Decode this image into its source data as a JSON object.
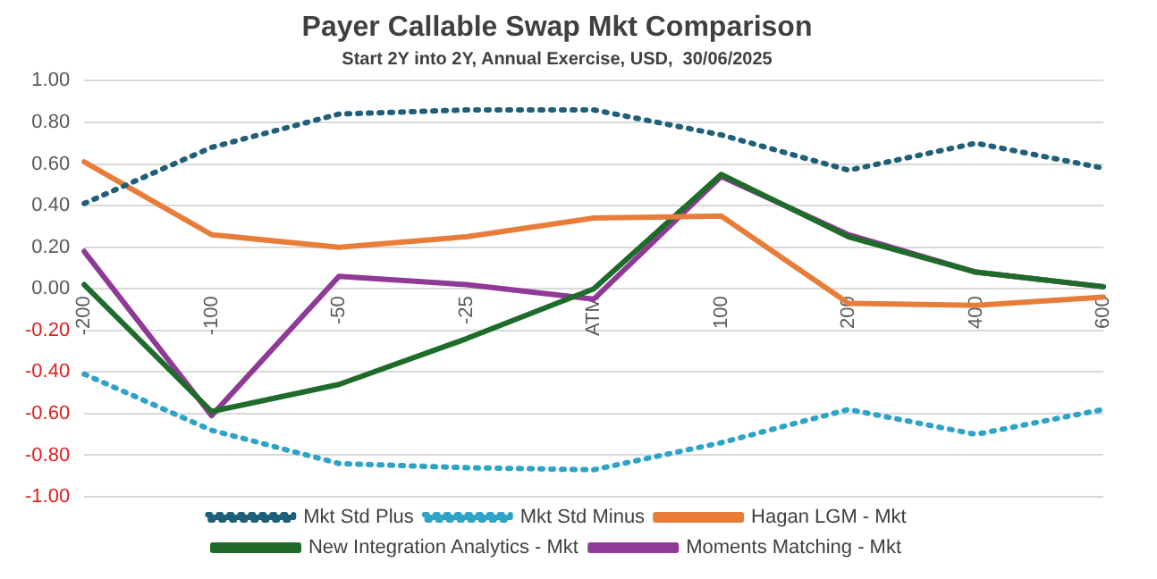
{
  "chart_data": {
    "type": "line",
    "title": "Payer Callable Swap Mkt Comparison",
    "subtitle": "Start 2Y into 2Y, Annual Exercise, USD,  30/06/2025",
    "categories": [
      "-200",
      "-100",
      "-50",
      "-25",
      "ATM",
      "100",
      "200",
      "400",
      "600"
    ],
    "series": [
      {
        "name": "Mkt Std Plus",
        "color": "#1f5f7a",
        "line_style": "dotted",
        "values": [
          0.41,
          0.68,
          0.84,
          0.86,
          0.86,
          0.74,
          0.57,
          0.7,
          0.58
        ]
      },
      {
        "name": "Mkt Std Minus",
        "color": "#2ea3c8",
        "line_style": "dotted",
        "values": [
          -0.41,
          -0.68,
          -0.84,
          -0.86,
          -0.87,
          -0.74,
          -0.58,
          -0.7,
          -0.58
        ]
      },
      {
        "name": "Hagan LGM - Mkt",
        "color": "#e87d3a",
        "line_style": "solid",
        "values": [
          0.61,
          0.26,
          0.2,
          0.25,
          0.34,
          0.35,
          -0.07,
          -0.08,
          -0.04
        ]
      },
      {
        "name": "New Integration Analytics - Mkt",
        "color": "#1e6b2a",
        "line_style": "solid",
        "values": [
          0.02,
          -0.59,
          -0.46,
          -0.24,
          0.0,
          0.55,
          0.25,
          0.08,
          0.01
        ]
      },
      {
        "name": "Moments Matching - Mkt",
        "color": "#8e3a96",
        "line_style": "solid",
        "values": [
          0.18,
          -0.61,
          0.06,
          0.02,
          -0.05,
          0.54,
          0.26,
          0.08,
          0.01
        ]
      }
    ],
    "ylim": [
      -1,
      1
    ],
    "yticks": [
      {
        "value": -1,
        "label": "-1.00"
      },
      {
        "value": -0.8,
        "label": "-0.80"
      },
      {
        "value": -0.6,
        "label": "-0.60"
      },
      {
        "value": -0.4,
        "label": "-0.40"
      },
      {
        "value": -0.2,
        "label": "-0.20"
      },
      {
        "value": 0,
        "label": "0.00"
      },
      {
        "value": 0.2,
        "label": "0.20"
      },
      {
        "value": 0.4,
        "label": "0.40"
      },
      {
        "value": 0.6,
        "label": "0.60"
      },
      {
        "value": 0.8,
        "label": "0.80"
      },
      {
        "value": 1,
        "label": "1.00"
      }
    ],
    "grid": "y",
    "legend": "bottom",
    "marker": "none"
  }
}
